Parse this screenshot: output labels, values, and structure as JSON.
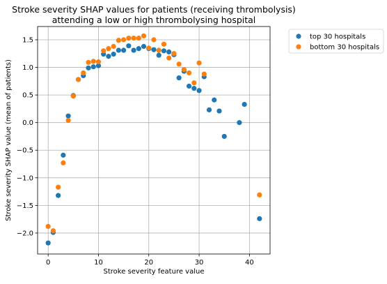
{
  "chart_data": {
    "type": "scatter",
    "title": "Stroke severity SHAP values for patients (receiving thrombolysis)\nattending a low or high thrombolysing hospital",
    "xlabel": "Stroke severity feature value",
    "ylabel": "Stroke severity SHAP value (mean of patients)",
    "xlim": [
      -2.1,
      44.1
    ],
    "ylim": [
      -2.38,
      1.74
    ],
    "xticks": [
      0,
      10,
      20,
      30,
      40
    ],
    "yticks": [
      -2.0,
      -1.5,
      -1.0,
      -0.5,
      0.0,
      0.5,
      1.0,
      1.5
    ],
    "xtick_labels": [
      "0",
      "10",
      "20",
      "30",
      "40"
    ],
    "ytick_labels": [
      "−2.0",
      "−1.5",
      "−1.0",
      "−0.5",
      "0.0",
      "0.5",
      "1.0",
      "1.5"
    ],
    "grid": true,
    "legend_position": "outside upper right",
    "series": [
      {
        "name": "top 30 hospitals",
        "color": "#1f77b4",
        "x": [
          0,
          1,
          2,
          3,
          4,
          5,
          6,
          7,
          8,
          9,
          10,
          11,
          12,
          13,
          14,
          15,
          16,
          17,
          18,
          19,
          20,
          21,
          22,
          23,
          24,
          25,
          26,
          27,
          28,
          29,
          30,
          31,
          32,
          33,
          34,
          35,
          38,
          39,
          42
        ],
        "y": [
          -2.18,
          -1.99,
          -1.32,
          -0.59,
          0.12,
          0.49,
          0.78,
          0.85,
          0.99,
          1.01,
          1.03,
          1.24,
          1.2,
          1.24,
          1.31,
          1.31,
          1.39,
          1.31,
          1.34,
          1.38,
          1.34,
          1.32,
          1.22,
          1.3,
          1.28,
          1.23,
          0.81,
          0.93,
          0.66,
          0.62,
          0.58,
          0.83,
          0.23,
          0.41,
          0.21,
          -0.25,
          0.0,
          0.33,
          -1.74
        ]
      },
      {
        "name": "bottom 30 hospitals",
        "color": "#ff7f0e",
        "x": [
          0,
          1,
          2,
          3,
          4,
          5,
          6,
          7,
          8,
          9,
          10,
          11,
          12,
          13,
          14,
          15,
          16,
          17,
          18,
          19,
          20,
          21,
          22,
          23,
          24,
          25,
          26,
          27,
          28,
          29,
          30,
          31,
          42
        ],
        "y": [
          -1.88,
          -1.96,
          -1.17,
          -0.73,
          0.04,
          0.48,
          0.78,
          0.9,
          1.09,
          1.11,
          1.1,
          1.3,
          1.34,
          1.38,
          1.49,
          1.5,
          1.53,
          1.53,
          1.53,
          1.57,
          1.35,
          1.5,
          1.31,
          1.42,
          1.17,
          1.25,
          1.06,
          0.96,
          0.9,
          0.72,
          1.08,
          0.88,
          -1.31
        ]
      }
    ]
  }
}
